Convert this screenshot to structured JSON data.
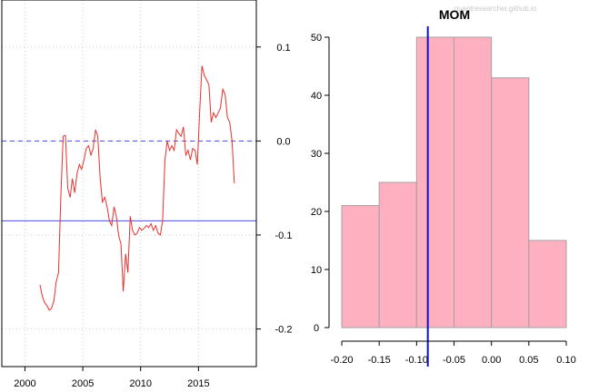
{
  "chart_data": [
    {
      "type": "line",
      "title": "",
      "xlabel": "",
      "ylabel": "",
      "xlim": [
        1998,
        2020
      ],
      "ylim": [
        -0.24,
        0.15
      ],
      "x_ticks": [
        2000,
        2005,
        2010,
        2015
      ],
      "x_tick_labels": [
        "2000",
        "2005",
        "2010",
        "2015"
      ],
      "y_ticks": [
        0.1,
        0.0,
        -0.1,
        -0.2
      ],
      "y_tick_labels": [
        "0.1",
        "0.0",
        "-0.1",
        "-0.2"
      ],
      "y_axis_side": "right",
      "grid": true,
      "reference_lines": [
        {
          "y": 0.0,
          "style": "dashed",
          "color": "#4a4ae8"
        },
        {
          "y": -0.085,
          "style": "solid",
          "color": "#4a4ae8"
        }
      ],
      "series": [
        {
          "color": "#e8312d",
          "x": [
            2001.3,
            2001.5,
            2001.7,
            2001.9,
            2002.1,
            2002.3,
            2002.5,
            2002.7,
            2002.9,
            2003.1,
            2003.3,
            2003.5,
            2003.7,
            2003.9,
            2004.1,
            2004.3,
            2004.5,
            2004.7,
            2004.9,
            2005.1,
            2005.3,
            2005.5,
            2005.7,
            2005.9,
            2006.1,
            2006.3,
            2006.5,
            2006.7,
            2006.9,
            2007.1,
            2007.3,
            2007.5,
            2007.7,
            2007.9,
            2008.1,
            2008.3,
            2008.5,
            2008.7,
            2008.9,
            2009.1,
            2009.3,
            2009.5,
            2009.7,
            2009.9,
            2010.1,
            2010.3,
            2010.5,
            2010.7,
            2010.9,
            2011.1,
            2011.3,
            2011.5,
            2011.7,
            2011.9,
            2012.1,
            2012.3,
            2012.5,
            2012.7,
            2012.9,
            2013.1,
            2013.3,
            2013.5,
            2013.7,
            2013.9,
            2014.1,
            2014.3,
            2014.5,
            2014.7,
            2014.9,
            2015.1,
            2015.3,
            2015.5,
            2015.7,
            2015.9,
            2016.1,
            2016.3,
            2016.5,
            2016.7,
            2016.9,
            2017.1,
            2017.3,
            2017.5,
            2017.7,
            2017.9,
            2018.1
          ],
          "values": [
            -0.153,
            -0.165,
            -0.172,
            -0.175,
            -0.18,
            -0.178,
            -0.17,
            -0.15,
            -0.14,
            -0.06,
            0.005,
            0.006,
            -0.05,
            -0.06,
            -0.04,
            -0.055,
            -0.035,
            -0.025,
            -0.03,
            -0.02,
            -0.008,
            -0.005,
            -0.015,
            -0.008,
            0.012,
            0.005,
            -0.04,
            -0.065,
            -0.06,
            -0.07,
            -0.085,
            -0.09,
            -0.07,
            -0.08,
            -0.1,
            -0.11,
            -0.16,
            -0.12,
            -0.14,
            -0.08,
            -0.095,
            -0.1,
            -0.098,
            -0.092,
            -0.095,
            -0.093,
            -0.09,
            -0.092,
            -0.088,
            -0.095,
            -0.09,
            -0.098,
            -0.1,
            -0.085,
            -0.02,
            0.0,
            -0.01,
            -0.005,
            -0.01,
            0.012,
            0.008,
            0.005,
            0.015,
            -0.015,
            -0.01,
            -0.02,
            -0.008,
            -0.01,
            -0.025,
            0.03,
            0.08,
            0.07,
            0.065,
            0.06,
            0.02,
            0.03,
            0.025,
            0.03,
            0.035,
            0.055,
            0.05,
            0.025,
            0.02,
            0.0,
            -0.045
          ]
        }
      ]
    },
    {
      "type": "bar",
      "title": "MOM",
      "xlabel": "",
      "ylabel": "",
      "bin_edges": [
        -0.2,
        -0.15,
        -0.1,
        -0.05,
        0.0,
        0.05,
        0.1
      ],
      "values": [
        21,
        25,
        50,
        50,
        43,
        15
      ],
      "note_bins": "histogram with 6 bins",
      "xlim": [
        -0.2,
        0.1
      ],
      "ylim": [
        0,
        52
      ],
      "x_ticks": [
        -0.2,
        -0.15,
        -0.1,
        -0.05,
        0.0,
        0.05,
        0.1
      ],
      "x_tick_labels": [
        "-0.20",
        "-0.15",
        "-0.10",
        "-0.05",
        "0.00",
        "0.05",
        "0.10"
      ],
      "y_ticks": [
        0,
        10,
        20,
        30,
        40,
        50
      ],
      "y_tick_labels": [
        "0",
        "10",
        "20",
        "30",
        "40",
        "50"
      ],
      "bar_color": "#ffb0c0",
      "bar_border_color": "#a0a0a0",
      "reference_line": {
        "x": -0.085,
        "color": "#1010cc"
      },
      "watermark": "quantresearcher.github.io"
    }
  ]
}
